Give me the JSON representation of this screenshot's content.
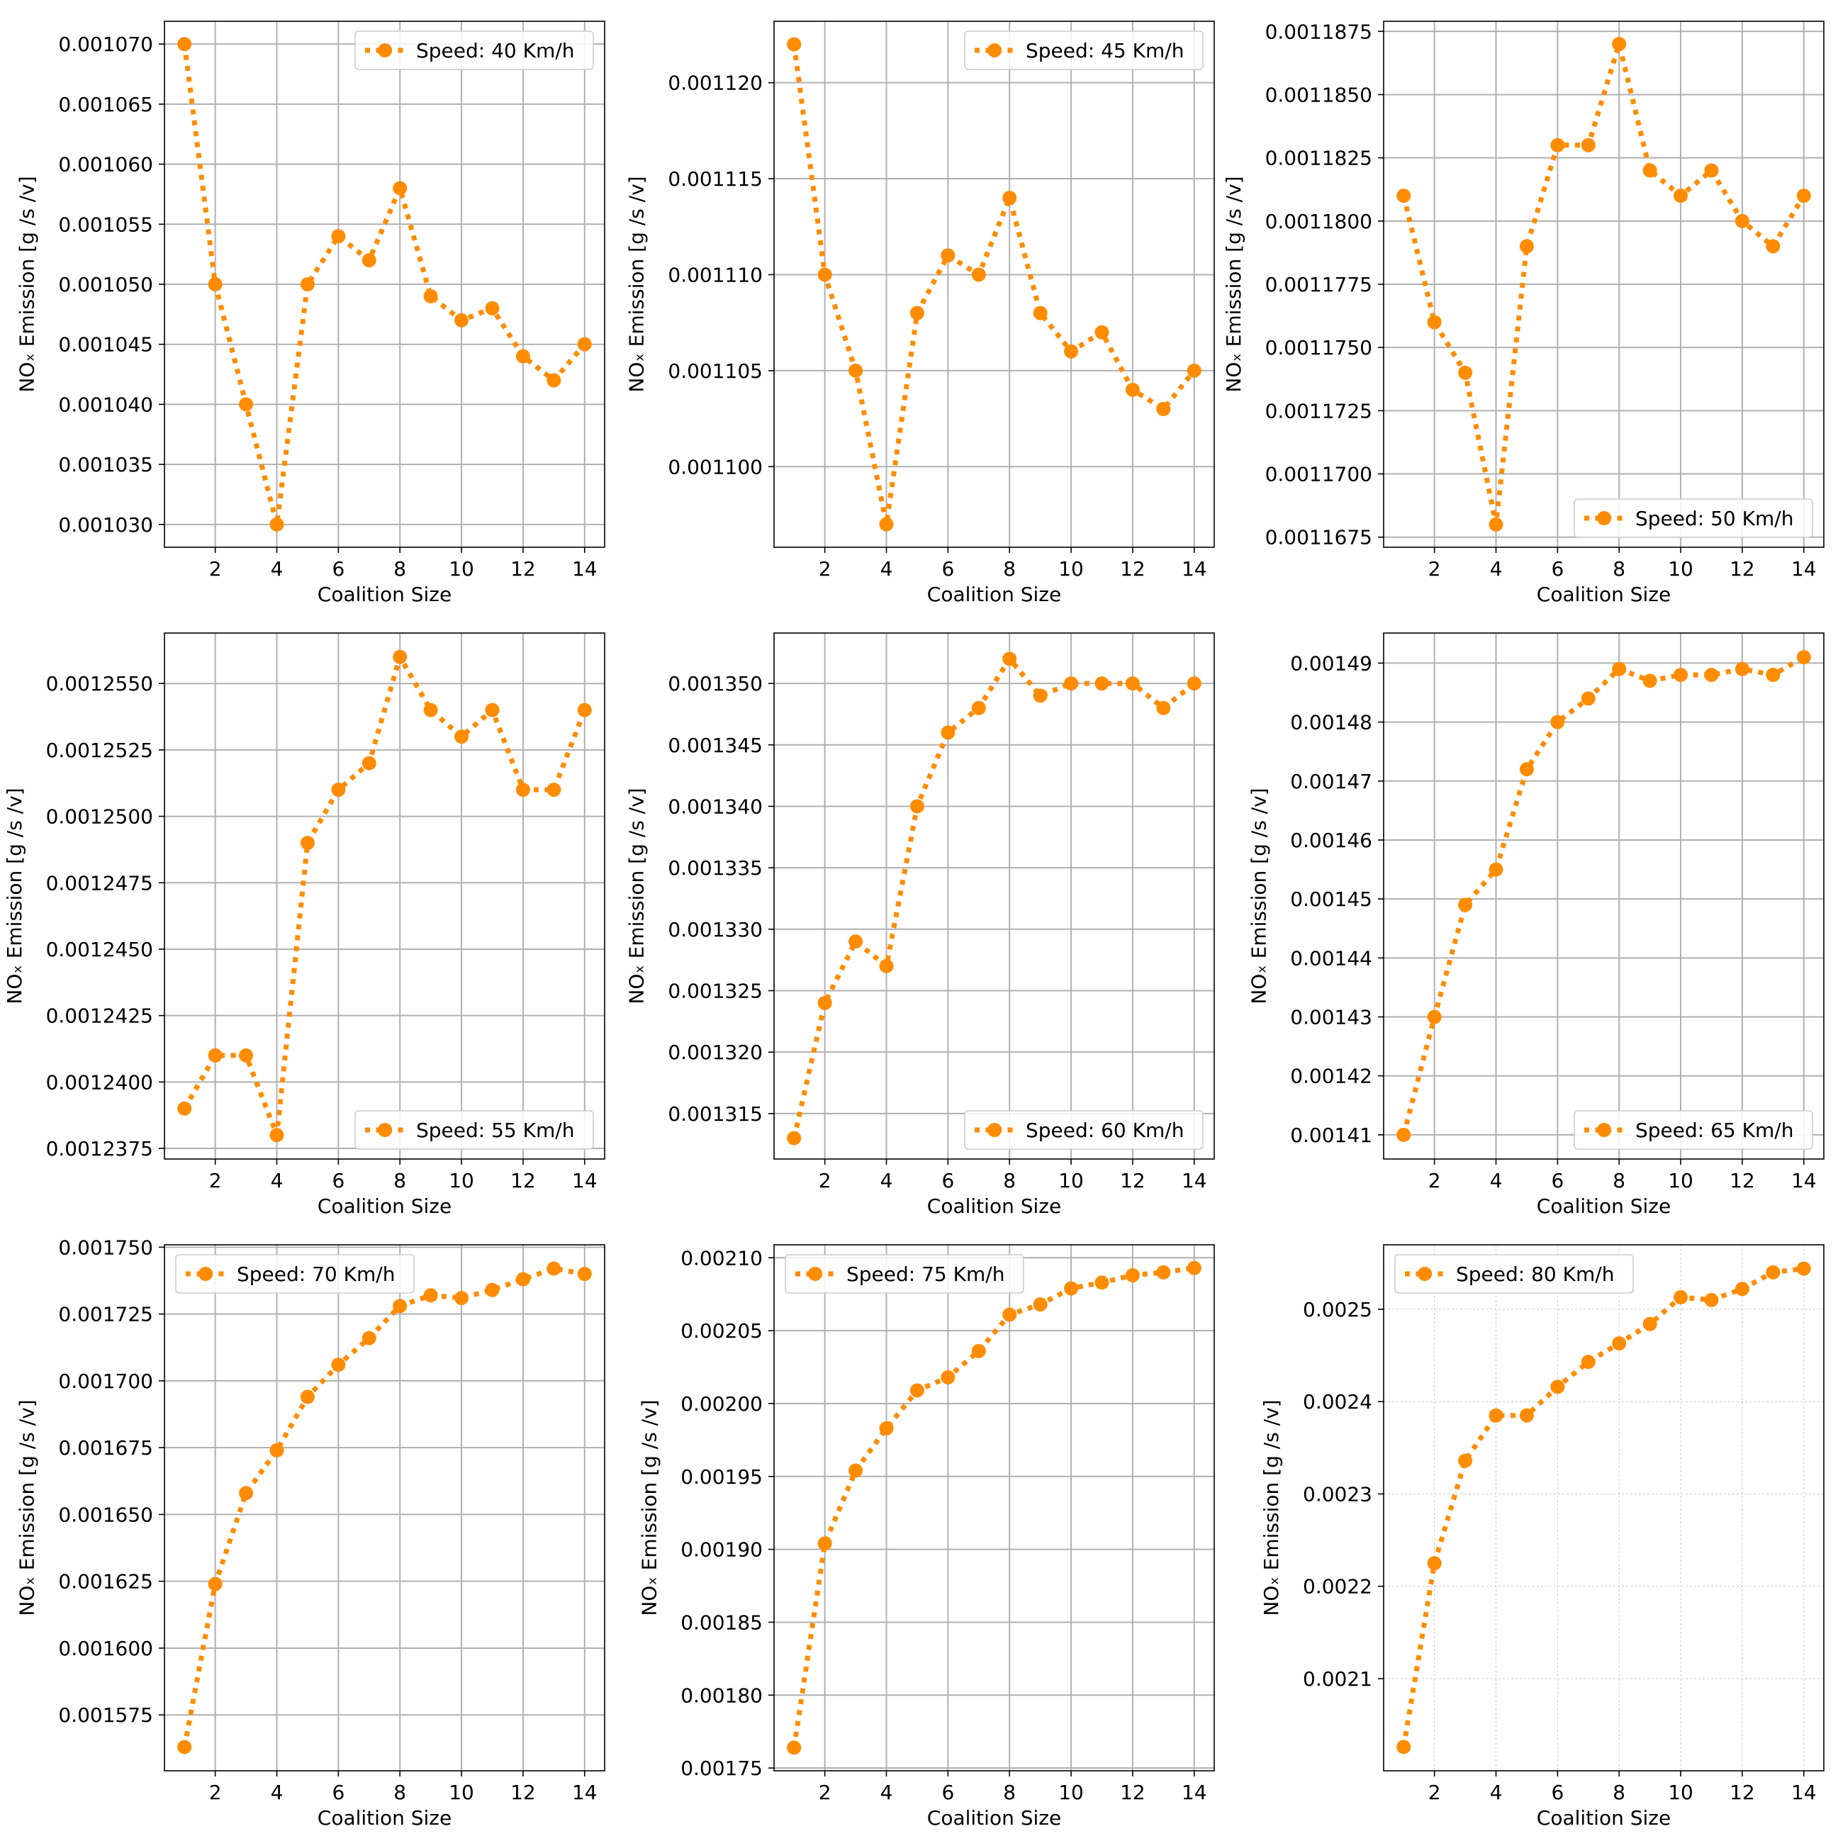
{
  "chart_data": [
    {
      "type": "line",
      "title": "",
      "xlabel": "Coalition Size",
      "ylabel": "NOₓ Emission [g /s /v]",
      "legend": "Speed: 40 Km/h",
      "legend_position": "top-right",
      "color": "#FF8C00",
      "grid": "solid",
      "x": [
        1,
        2,
        3,
        4,
        5,
        6,
        7,
        8,
        9,
        10,
        11,
        12,
        13,
        14
      ],
      "values": [
        0.00107,
        0.00105,
        0.00104,
        0.00103,
        0.00105,
        0.001054,
        0.001052,
        0.001058,
        0.001049,
        0.001047,
        0.001048,
        0.001044,
        0.001042,
        0.001045
      ],
      "xlim": [
        0.35,
        14.65
      ],
      "ylim": [
        0.0010281,
        0.0010719
      ],
      "xticks": [
        2,
        4,
        6,
        8,
        10,
        12,
        14
      ],
      "xtick_labels": [
        "2",
        "4",
        "6",
        "8",
        "10",
        "12",
        "14"
      ],
      "yticks": [
        0.00103,
        0.001035,
        0.00104,
        0.001045,
        0.00105,
        0.001055,
        0.00106,
        0.001065,
        0.00107
      ],
      "ytick_labels": [
        "0.001030",
        "0.001035",
        "0.001040",
        "0.001045",
        "0.001050",
        "0.001055",
        "0.001060",
        "0.001065",
        "0.001070"
      ]
    },
    {
      "type": "line",
      "title": "",
      "xlabel": "Coalition Size",
      "ylabel": "NOₓ Emission [g /s /v]",
      "legend": "Speed: 45 Km/h",
      "legend_position": "top-right",
      "color": "#FF8C00",
      "grid": "solid",
      "x": [
        1,
        2,
        3,
        4,
        5,
        6,
        7,
        8,
        9,
        10,
        11,
        12,
        13,
        14
      ],
      "values": [
        0.001122,
        0.00111,
        0.001105,
        0.001097,
        0.001108,
        0.001111,
        0.00111,
        0.001114,
        0.001108,
        0.001106,
        0.001107,
        0.001104,
        0.001103,
        0.001105
      ],
      "xlim": [
        0.35,
        14.65
      ],
      "ylim": [
        0.0010958,
        0.0011232
      ],
      "xticks": [
        2,
        4,
        6,
        8,
        10,
        12,
        14
      ],
      "xtick_labels": [
        "2",
        "4",
        "6",
        "8",
        "10",
        "12",
        "14"
      ],
      "yticks": [
        0.0011,
        0.001105,
        0.00111,
        0.001115,
        0.00112
      ],
      "ytick_labels": [
        "0.001100",
        "0.001105",
        "0.001110",
        "0.001115",
        "0.001120"
      ]
    },
    {
      "type": "line",
      "title": "",
      "xlabel": "Coalition Size",
      "ylabel": "NOₓ Emission [g /s /v]",
      "legend": "Speed: 50 Km/h",
      "legend_position": "bottom-right",
      "color": "#FF8C00",
      "grid": "solid",
      "x": [
        1,
        2,
        3,
        4,
        5,
        6,
        7,
        8,
        9,
        10,
        11,
        12,
        13,
        14
      ],
      "values": [
        0.001181,
        0.001176,
        0.001174,
        0.001168,
        0.001179,
        0.001183,
        0.001183,
        0.001187,
        0.001182,
        0.001181,
        0.001182,
        0.00118,
        0.001179,
        0.001181
      ],
      "xlim": [
        0.35,
        14.65
      ],
      "ylim": [
        0.0011671,
        0.0011879
      ],
      "xticks": [
        2,
        4,
        6,
        8,
        10,
        12,
        14
      ],
      "xtick_labels": [
        "2",
        "4",
        "6",
        "8",
        "10",
        "12",
        "14"
      ],
      "yticks": [
        0.0011675,
        0.00117,
        0.0011725,
        0.001175,
        0.0011775,
        0.00118,
        0.0011825,
        0.001185,
        0.0011875
      ],
      "ytick_labels": [
        "0.0011675",
        "0.0011700",
        "0.0011725",
        "0.0011750",
        "0.0011775",
        "0.0011800",
        "0.0011825",
        "0.0011850",
        "0.0011875"
      ]
    },
    {
      "type": "line",
      "title": "",
      "xlabel": "Coalition Size",
      "ylabel": "NOₓ Emission [g /s /v]",
      "legend": "Speed: 55 Km/h",
      "legend_position": "bottom-right",
      "color": "#FF8C00",
      "grid": "solid",
      "x": [
        1,
        2,
        3,
        4,
        5,
        6,
        7,
        8,
        9,
        10,
        11,
        12,
        13,
        14
      ],
      "values": [
        0.001239,
        0.001241,
        0.001241,
        0.001238,
        0.001249,
        0.001251,
        0.001252,
        0.001256,
        0.001254,
        0.001253,
        0.001254,
        0.001251,
        0.001251,
        0.001254
      ],
      "xlim": [
        0.35,
        14.65
      ],
      "ylim": [
        0.0012371,
        0.0012569
      ],
      "xticks": [
        2,
        4,
        6,
        8,
        10,
        12,
        14
      ],
      "xtick_labels": [
        "2",
        "4",
        "6",
        "8",
        "10",
        "12",
        "14"
      ],
      "yticks": [
        0.0012375,
        0.00124,
        0.0012425,
        0.001245,
        0.0012475,
        0.00125,
        0.0012525,
        0.001255
      ],
      "ytick_labels": [
        "0.0012375",
        "0.0012400",
        "0.0012425",
        "0.0012450",
        "0.0012475",
        "0.0012500",
        "0.0012525",
        "0.0012550"
      ]
    },
    {
      "type": "line",
      "title": "",
      "xlabel": "Coalition Size",
      "ylabel": "NOₓ Emission [g /s /v]",
      "legend": "Speed: 60 Km/h",
      "legend_position": "bottom-right",
      "color": "#FF8C00",
      "grid": "solid",
      "x": [
        1,
        2,
        3,
        4,
        5,
        6,
        7,
        8,
        9,
        10,
        11,
        12,
        13,
        14
      ],
      "values": [
        0.001313,
        0.001324,
        0.001329,
        0.001327,
        0.00134,
        0.001346,
        0.001348,
        0.001352,
        0.001349,
        0.00135,
        0.00135,
        0.00135,
        0.001348,
        0.00135
      ],
      "xlim": [
        0.35,
        14.65
      ],
      "ylim": [
        0.0013113,
        0.0013541
      ],
      "xticks": [
        2,
        4,
        6,
        8,
        10,
        12,
        14
      ],
      "xtick_labels": [
        "2",
        "4",
        "6",
        "8",
        "10",
        "12",
        "14"
      ],
      "yticks": [
        0.001315,
        0.00132,
        0.001325,
        0.00133,
        0.001335,
        0.00134,
        0.001345,
        0.00135
      ],
      "ytick_labels": [
        "0.001315",
        "0.001320",
        "0.001325",
        "0.001330",
        "0.001335",
        "0.001340",
        "0.001345",
        "0.001350"
      ]
    },
    {
      "type": "line",
      "title": "",
      "xlabel": "Coalition Size",
      "ylabel": "NOₓ Emission [g /s /v]",
      "legend": "Speed: 65 Km/h",
      "legend_position": "bottom-right",
      "color": "#FF8C00",
      "grid": "solid",
      "x": [
        1,
        2,
        3,
        4,
        5,
        6,
        7,
        8,
        9,
        10,
        11,
        12,
        13,
        14
      ],
      "values": [
        0.00141,
        0.00143,
        0.001449,
        0.001455,
        0.001472,
        0.00148,
        0.001484,
        0.001489,
        0.001487,
        0.001488,
        0.001488,
        0.001489,
        0.001488,
        0.001491
      ],
      "xlim": [
        0.35,
        14.65
      ],
      "ylim": [
        0.0014059,
        0.0014951
      ],
      "xticks": [
        2,
        4,
        6,
        8,
        10,
        12,
        14
      ],
      "xtick_labels": [
        "2",
        "4",
        "6",
        "8",
        "10",
        "12",
        "14"
      ],
      "yticks": [
        0.00141,
        0.00142,
        0.00143,
        0.00144,
        0.00145,
        0.00146,
        0.00147,
        0.00148,
        0.00149
      ],
      "ytick_labels": [
        "0.00141",
        "0.00142",
        "0.00143",
        "0.00144",
        "0.00145",
        "0.00146",
        "0.00147",
        "0.00148",
        "0.00149"
      ]
    },
    {
      "type": "line",
      "title": "",
      "xlabel": "Coalition Size",
      "ylabel": "NOₓ Emission [g /s /v]",
      "legend": "Speed: 70 Km/h",
      "legend_position": "top-left",
      "color": "#FF8C00",
      "grid": "solid",
      "x": [
        1,
        2,
        3,
        4,
        5,
        6,
        7,
        8,
        9,
        10,
        11,
        12,
        13,
        14
      ],
      "values": [
        0.001563,
        0.001624,
        0.001658,
        0.001674,
        0.001694,
        0.001706,
        0.001716,
        0.001728,
        0.001732,
        0.001731,
        0.001734,
        0.001738,
        0.001742,
        0.00174
      ],
      "xlim": [
        0.35,
        14.65
      ],
      "ylim": [
        0.0015541,
        0.0017509
      ],
      "xticks": [
        2,
        4,
        6,
        8,
        10,
        12,
        14
      ],
      "xtick_labels": [
        "2",
        "4",
        "6",
        "8",
        "10",
        "12",
        "14"
      ],
      "yticks": [
        0.001575,
        0.0016,
        0.001625,
        0.00165,
        0.001675,
        0.0017,
        0.001725,
        0.00175
      ],
      "ytick_labels": [
        "0.001575",
        "0.001600",
        "0.001625",
        "0.001650",
        "0.001675",
        "0.001700",
        "0.001725",
        "0.001750"
      ]
    },
    {
      "type": "line",
      "title": "",
      "xlabel": "Coalition Size",
      "ylabel": "NOₓ Emission [g /s /v]",
      "legend": "Speed: 75 Km/h",
      "legend_position": "top-left",
      "color": "#FF8C00",
      "grid": "solid",
      "x": [
        1,
        2,
        3,
        4,
        5,
        6,
        7,
        8,
        9,
        10,
        11,
        12,
        13,
        14
      ],
      "values": [
        0.001764,
        0.001904,
        0.001954,
        0.001983,
        0.002009,
        0.002018,
        0.002036,
        0.002061,
        0.002068,
        0.002079,
        0.002083,
        0.002088,
        0.00209,
        0.002093
      ],
      "xlim": [
        0.35,
        14.65
      ],
      "ylim": [
        0.0017481,
        0.0021089
      ],
      "xticks": [
        2,
        4,
        6,
        8,
        10,
        12,
        14
      ],
      "xtick_labels": [
        "2",
        "4",
        "6",
        "8",
        "10",
        "12",
        "14"
      ],
      "yticks": [
        0.00175,
        0.0018,
        0.00185,
        0.0019,
        0.00195,
        0.002,
        0.00205,
        0.0021
      ],
      "ytick_labels": [
        "0.00175",
        "0.00180",
        "0.00185",
        "0.00190",
        "0.00195",
        "0.00200",
        "0.00205",
        "0.00210"
      ]
    },
    {
      "type": "line",
      "title": "",
      "xlabel": "Coalition Size",
      "ylabel": "NOₓ Emission [g /s /v]",
      "legend": "Speed: 80 Km/h",
      "legend_position": "top-left",
      "color": "#FF8C00",
      "grid": "thin",
      "x": [
        1,
        2,
        3,
        4,
        5,
        6,
        7,
        8,
        9,
        10,
        11,
        12,
        13,
        14
      ],
      "values": [
        0.002026,
        0.002225,
        0.002336,
        0.002385,
        0.002385,
        0.002416,
        0.002443,
        0.002463,
        0.002484,
        0.002513,
        0.00251,
        0.002522,
        0.00254,
        0.002544
      ],
      "xlim": [
        0.35,
        14.65
      ],
      "ylim": [
        0.0020002,
        0.0025698
      ],
      "xticks": [
        2,
        4,
        6,
        8,
        10,
        12,
        14
      ],
      "xtick_labels": [
        "2",
        "4",
        "6",
        "8",
        "10",
        "12",
        "14"
      ],
      "yticks": [
        0.0021,
        0.0022,
        0.0023,
        0.0024,
        0.0025
      ],
      "ytick_labels": [
        "0.0021",
        "0.0022",
        "0.0023",
        "0.0024",
        "0.0025"
      ]
    }
  ]
}
